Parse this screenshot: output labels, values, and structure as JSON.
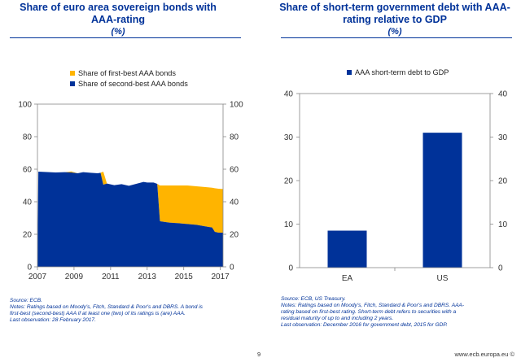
{
  "left_panel": {
    "title_line1": "Share of euro area sovereign bonds with",
    "title_line2": "AAA-rating",
    "unit": "(%)",
    "notes": [
      "Source: ECB.",
      "Notes: Ratings based on Moody's, Fitch, Standard & Poor's and DBRS. A bond is",
      "first-best (second-best) AAA if at least one (two) of its ratings is (are) AAA.",
      "Last observation: 28 February 2017."
    ]
  },
  "right_panel": {
    "title_line1": "Share of short-term government debt with AAA-",
    "title_line2": "rating relative to GDP",
    "unit": "(%)",
    "notes": [
      "Source: ECB, US Treasury.",
      "Notes: Ratings based on Moody's, Fitch, Standard & Poor's and DBRS. AAA-",
      "rating based on first-best  rating. Short-term debt refers to securities with a",
      "residual maturity of  up to and including 2 years.",
      "Last observation: December 2016 for government debt, 2015 for GDP."
    ]
  },
  "footer": {
    "page_number": "9",
    "website": "www.ecb.europa.eu ©"
  },
  "colors": {
    "navy": "#003299",
    "gold": "#ffb400",
    "title_blue": "#003299"
  },
  "chart_data": [
    {
      "type": "area",
      "stacked": true,
      "x_tick_labels": [
        "2007",
        "2009",
        "2011",
        "2013",
        "2015",
        "2017"
      ],
      "x": [
        2007.0,
        2007.05,
        2008.0,
        2008.5,
        2008.85,
        2009.2,
        2009.5,
        2009.9,
        2010.3,
        2010.45,
        2010.6,
        2010.8,
        2011.2,
        2011.6,
        2012.0,
        2012.4,
        2012.8,
        2013.0,
        2013.35,
        2013.55,
        2013.7,
        2014.2,
        2014.7,
        2015.2,
        2015.7,
        2016.2,
        2016.55,
        2016.7,
        2016.9,
        2017.15
      ],
      "series": [
        {
          "name": "Share of second-best AAA bonds",
          "color": "#003299",
          "values": [
            0,
            58.5,
            58.0,
            58.2,
            58.0,
            57.5,
            58.2,
            57.8,
            57.5,
            57.8,
            50.5,
            51.2,
            50.2,
            50.8,
            49.8,
            51.0,
            52.2,
            51.8,
            51.8,
            51.0,
            28.0,
            27.2,
            26.8,
            26.3,
            25.8,
            24.8,
            24.2,
            21.5,
            21.0,
            21.0
          ]
        },
        {
          "name": "Share of first-best AAA bonds",
          "color": "#ffb400",
          "values": [
            0,
            0,
            0,
            0,
            0.6,
            0,
            0,
            0,
            0,
            0,
            8.0,
            0,
            0,
            0,
            0,
            0,
            0,
            0,
            0,
            0,
            22.0,
            22.8,
            23.2,
            23.7,
            23.7,
            24.2,
            24.4,
            26.8,
            27.0,
            26.8
          ]
        }
      ],
      "ylim": [
        0,
        100
      ],
      "y_ticks": [
        0,
        20,
        40,
        60,
        80,
        100
      ],
      "legend": [
        "Share of first-best AAA bonds",
        "Share of second-best AAA bonds"
      ],
      "legend_position": "top-left",
      "grid": false
    },
    {
      "type": "bar",
      "categories": [
        "EA",
        "US"
      ],
      "series": [
        {
          "name": "AAA short-term debt to GDP",
          "color": "#003299",
          "values": [
            8.5,
            31.0
          ]
        }
      ],
      "ylim": [
        0,
        40
      ],
      "y_ticks": [
        0,
        10,
        20,
        30,
        40
      ],
      "legend": [
        "AAA short-term debt to GDP"
      ],
      "legend_position": "top-center",
      "grid": false
    }
  ]
}
